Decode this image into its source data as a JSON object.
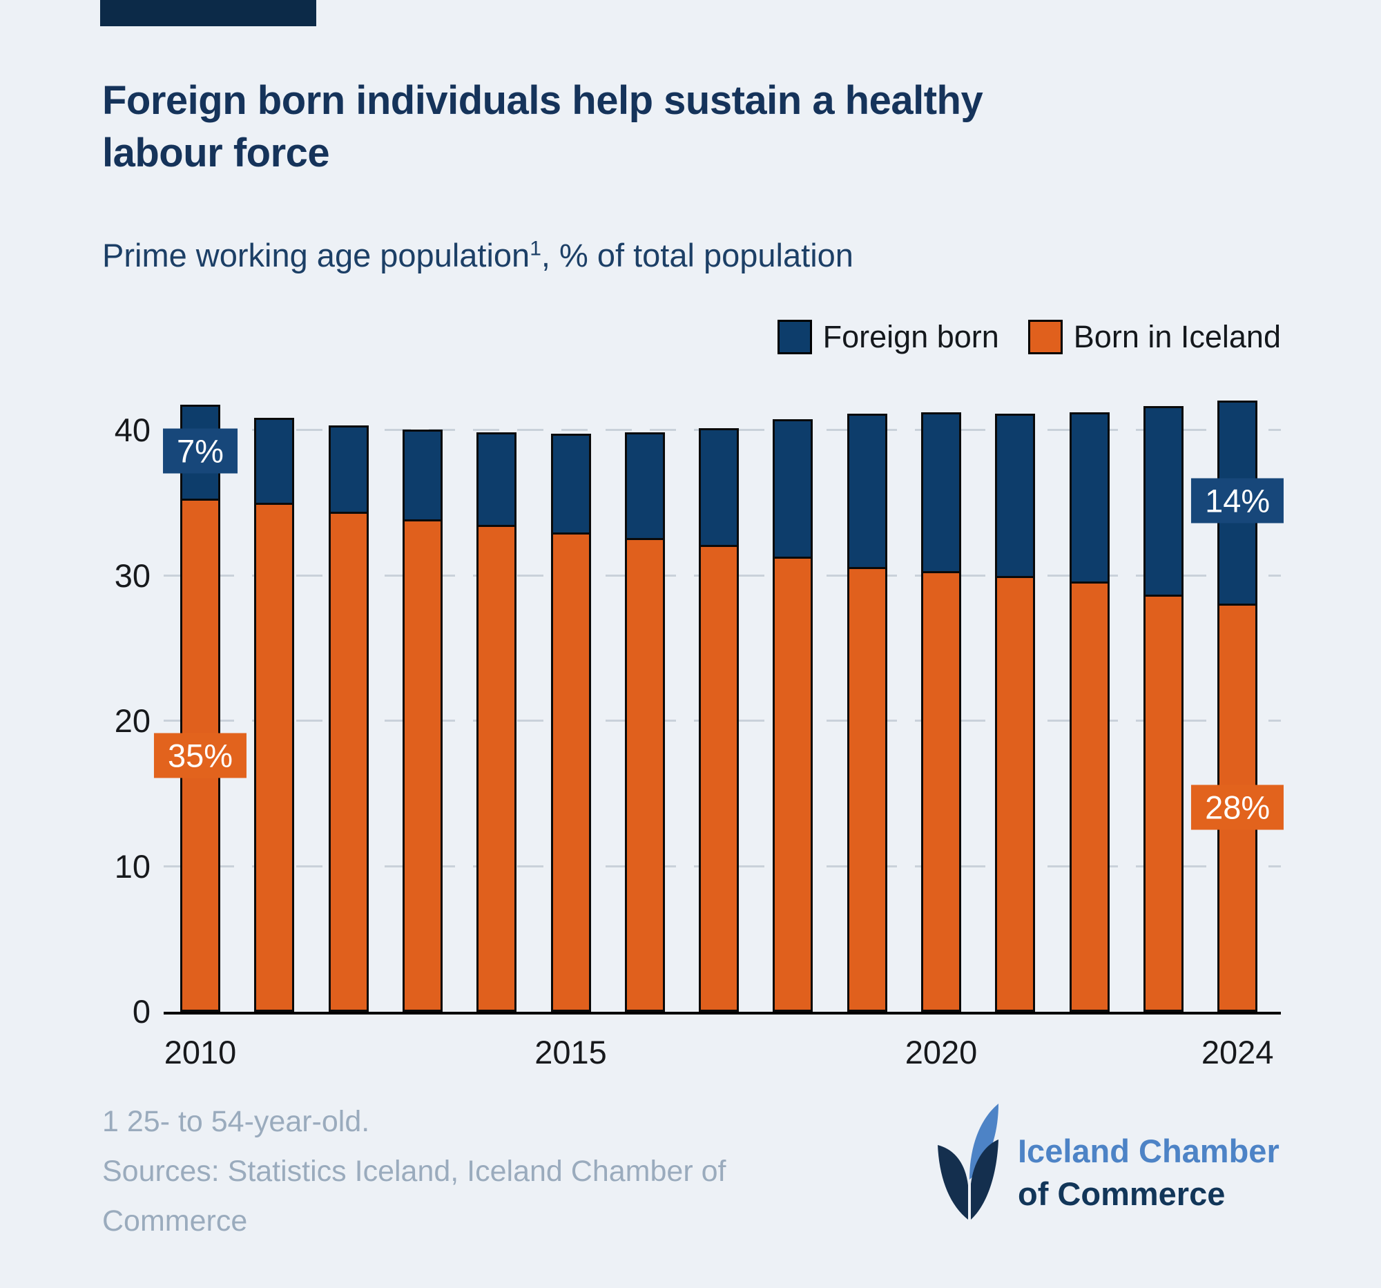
{
  "page": {
    "background": "#edf1f6",
    "flag_color": "#0c2a48"
  },
  "header": {
    "title_line1": "Foreign born individuals help sustain a healthy",
    "title_line2": "labour force",
    "subtitle_prefix": "Prime working age population",
    "subtitle_superscript": "1",
    "subtitle_suffix": ", % of total population"
  },
  "chart_data": {
    "type": "bar",
    "stacked": true,
    "title": "Foreign born individuals help sustain a healthy labour force",
    "subtitle": "Prime working age population, % of total population",
    "categories": [
      2010,
      2011,
      2012,
      2013,
      2014,
      2015,
      2016,
      2017,
      2018,
      2019,
      2020,
      2021,
      2022,
      2023,
      2024
    ],
    "series": [
      {
        "name": "Born in Iceland",
        "color": "#e0601d",
        "values": [
          35.3,
          35.0,
          34.4,
          33.9,
          33.5,
          33.0,
          32.6,
          32.1,
          31.3,
          30.6,
          30.3,
          30.0,
          29.6,
          28.7,
          28.1
        ]
      },
      {
        "name": "Foreign born",
        "color": "#0d3d6b",
        "values": [
          6.6,
          6.0,
          6.1,
          6.3,
          6.5,
          6.9,
          7.4,
          8.2,
          9.6,
          10.7,
          11.1,
          11.3,
          11.8,
          13.1,
          14.1
        ]
      }
    ],
    "legend": [
      {
        "label": "Foreign born",
        "color": "#0d3d6b"
      },
      {
        "label": "Born in Iceland",
        "color": "#e0601d"
      }
    ],
    "legend_position": "top-right",
    "grid": "dashed horizontal",
    "grid_color": "#c9d1da",
    "ylim": [
      0,
      45
    ],
    "y_ticks": [
      0,
      10,
      20,
      30,
      40
    ],
    "x_ticks": [
      "2010",
      "2015",
      "2020",
      "2024"
    ],
    "annotations": [
      {
        "year": "2010",
        "series": "Foreign born",
        "text": "7%",
        "box_color": "#17477a"
      },
      {
        "year": "2010",
        "series": "Born in Iceland",
        "text": "35%",
        "box_color": "#e2631d"
      },
      {
        "year": "2024",
        "series": "Foreign born",
        "text": "14%",
        "box_color": "#17477a"
      },
      {
        "year": "2024",
        "series": "Born in Iceland",
        "text": "28%",
        "box_color": "#e2631d"
      }
    ]
  },
  "footer": {
    "footnote": "1 25- to 54-year-old.",
    "sources_line1": "Sources: Statistics Iceland, Iceland Chamber of",
    "sources_line2": "Commerce",
    "logo_line1": "Iceland Chamber",
    "logo_line2": "of Commerce"
  }
}
